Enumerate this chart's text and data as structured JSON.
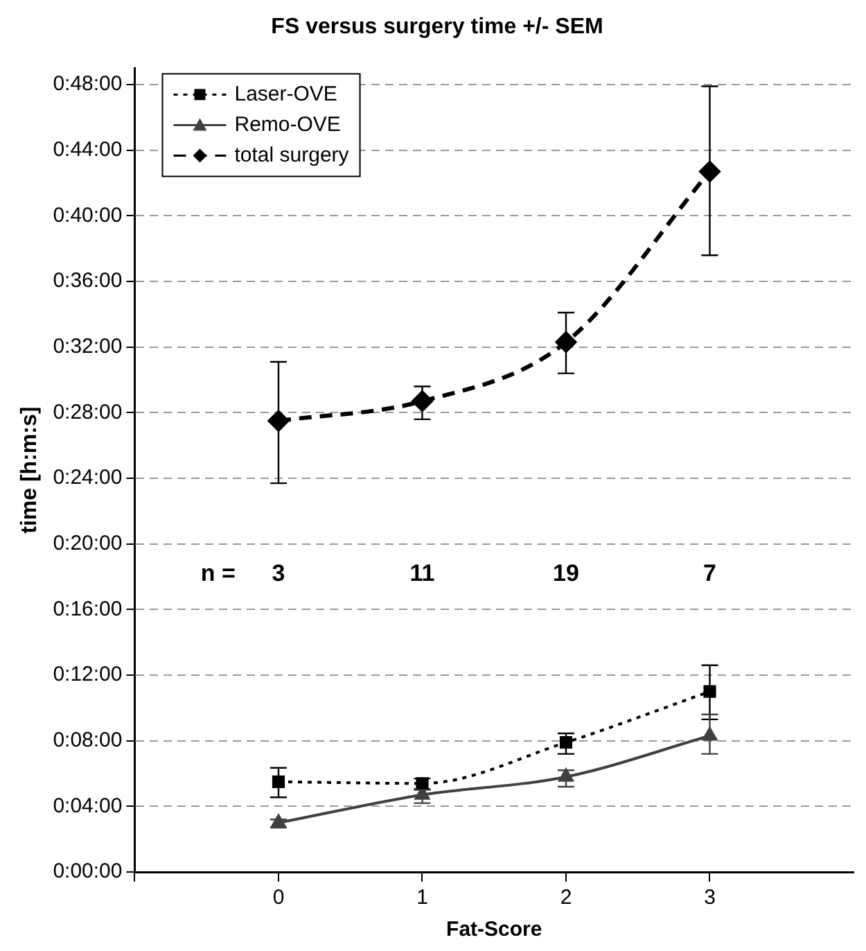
{
  "chart_data": {
    "type": "line",
    "title": "FS versus surgery time +/- SEM",
    "xlabel": "Fat-Score",
    "ylabel": "time [h:m:s]",
    "x": [
      0,
      1,
      2,
      3
    ],
    "series": [
      {
        "name": "Laser-OVE",
        "color": "#000000",
        "marker": "square",
        "line_style": "dotted",
        "values": [
          5.5,
          5.4,
          7.9,
          11.0
        ],
        "errors": [
          [
            4.55,
            6.35
          ],
          [
            5.05,
            5.7
          ],
          [
            7.2,
            8.45
          ],
          [
            9.3,
            12.6
          ]
        ]
      },
      {
        "name": "Remo-OVE",
        "color": "#404040",
        "marker": "triangle",
        "line_style": "solid",
        "values": [
          3.0,
          4.7,
          5.8,
          8.3
        ],
        "errors": [
          [
            2.7,
            3.2
          ],
          [
            4.2,
            5.0
          ],
          [
            5.2,
            6.2
          ],
          [
            7.2,
            9.6
          ]
        ]
      },
      {
        "name": "total surgery",
        "color": "#000000",
        "marker": "diamond",
        "line_style": "dashed",
        "values": [
          27.5,
          28.7,
          32.3,
          42.7
        ],
        "errors": [
          [
            23.7,
            31.1
          ],
          [
            27.6,
            29.6
          ],
          [
            30.4,
            34.1
          ],
          [
            37.6,
            47.9
          ]
        ]
      }
    ],
    "xlim": [
      -1,
      4
    ],
    "xticks": [
      {
        "value": -1,
        "label": null
      },
      0,
      1,
      2,
      3
    ],
    "ylim": [
      0,
      49
    ],
    "yticks": [
      {
        "value": 0,
        "label": "0:00:00"
      },
      {
        "value": 4,
        "label": "0:04:00"
      },
      {
        "value": 8,
        "label": "0:08:00"
      },
      {
        "value": 12,
        "label": "0:12:00"
      },
      {
        "value": 16,
        "label": "0:16:00"
      },
      {
        "value": 20,
        "label": "0:20:00"
      },
      {
        "value": 24,
        "label": "0:24:00"
      },
      {
        "value": 28,
        "label": "0:28:00"
      },
      {
        "value": 32,
        "label": "0:32:00"
      },
      {
        "value": 36,
        "label": "0:36:00"
      },
      {
        "value": 40,
        "label": "0:40:00"
      },
      {
        "value": 44,
        "label": "0:44:00"
      },
      {
        "value": 48,
        "label": "0:48:00"
      }
    ],
    "grid": "y",
    "legend": "top left",
    "annotations": [
      "n =",
      "3",
      "11",
      "19",
      "7"
    ]
  }
}
